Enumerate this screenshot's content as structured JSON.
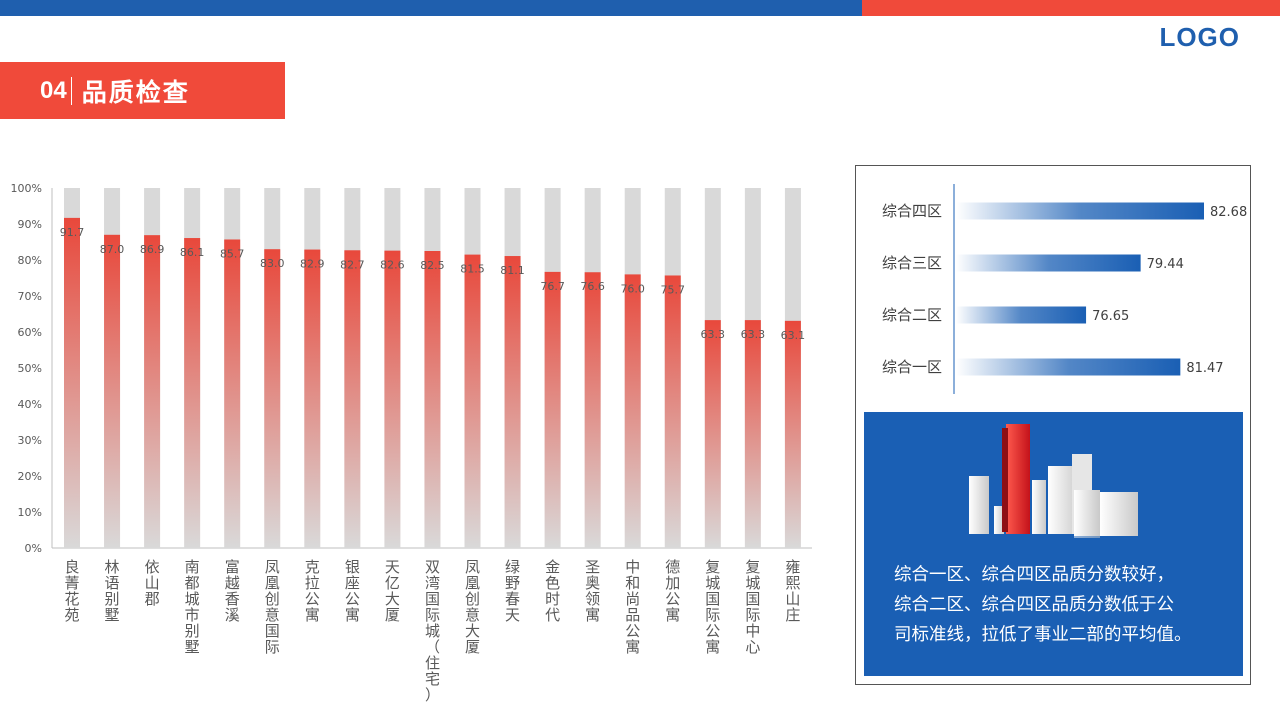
{
  "header": {
    "logo": "LOGO"
  },
  "section": {
    "number": "04",
    "title": "品质检查"
  },
  "chart_data": [
    {
      "type": "bar",
      "categories": [
        "良菁花苑",
        "林语别墅",
        "依山郡",
        "南都城市别墅",
        "富越香溪",
        "凤凰创意国际",
        "克拉公寓",
        "银座公寓",
        "天亿大厦",
        "双湾国际城（住宅）",
        "凤凰创意大厦",
        "绿野春天",
        "金色时代",
        "圣奥领寓",
        "中和尚品公寓",
        "德加公寓",
        "复城国际公寓",
        "复城国际中心",
        "雍熙山庄"
      ],
      "values": [
        91.7,
        87.0,
        86.9,
        86.1,
        85.7,
        83.0,
        82.9,
        82.7,
        82.6,
        82.5,
        81.5,
        81.1,
        76.7,
        76.6,
        76.0,
        75.7,
        63.3,
        63.3,
        63.1
      ],
      "value_labels": [
        "91.7",
        "87.0",
        "86.9",
        "86.1",
        "85.7",
        "83.0",
        "82.9",
        "82.7",
        "82.6",
        "82.5",
        "81.5",
        "81.1",
        "76.7",
        "76.6",
        "76.0",
        "75.7",
        "63.3",
        "63.3",
        "63.1"
      ],
      "yticks": [
        "0%",
        "10%",
        "20%",
        "30%",
        "40%",
        "50%",
        "60%",
        "70%",
        "80%",
        "90%",
        "100%"
      ],
      "ylim": [
        0,
        100
      ],
      "colors": {
        "bar": "#e8483b",
        "background_bar": "#d9d9d9"
      }
    },
    {
      "type": "bar",
      "orientation": "horizontal",
      "categories": [
        "综合四区",
        "综合三区",
        "综合二区",
        "综合一区"
      ],
      "values": [
        82.68,
        79.44,
        76.65,
        81.47
      ],
      "value_labels": [
        "82.68",
        "79.44",
        "76.65",
        "81.47"
      ],
      "colors": {
        "bar": "#1a5fb4"
      }
    }
  ],
  "info": {
    "lines": [
      "综合一区、综合四区品质分数较好，",
      "综合二区、综合四区品质分数低于公",
      "司标准线，拉低了事业二部的平均值。"
    ]
  }
}
